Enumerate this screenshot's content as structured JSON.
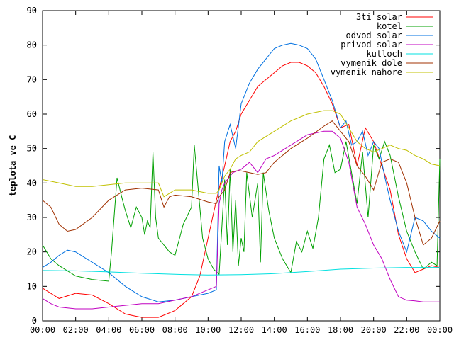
{
  "chart_data": {
    "type": "line",
    "title": "",
    "xlabel": "",
    "ylabel": "teplota ve C",
    "xlim": [
      "00:00",
      "24:00"
    ],
    "ylim": [
      0,
      90
    ],
    "yticks": [
      0,
      10,
      20,
      30,
      40,
      50,
      60,
      70,
      80,
      90
    ],
    "xticks": [
      "00:00",
      "02:00",
      "04:00",
      "06:00",
      "08:00",
      "10:00",
      "12:00",
      "14:00",
      "16:00",
      "18:00",
      "20:00",
      "22:00",
      "00:00"
    ],
    "grid": false,
    "legend": "top-right",
    "series": [
      {
        "name": "3ti solar",
        "color": "#ff0000",
        "x": [
          "00:00",
          "01:00",
          "02:00",
          "03:00",
          "04:00",
          "05:00",
          "05:30",
          "06:00",
          "07:00",
          "08:00",
          "09:00",
          "09:30",
          "10:00",
          "10:30",
          "11:00",
          "11:20",
          "11:40",
          "12:00",
          "12:30",
          "13:00",
          "13:30",
          "14:00",
          "14:30",
          "15:00",
          "15:30",
          "16:00",
          "16:30",
          "17:00",
          "17:30",
          "18:00",
          "18:30",
          "19:00",
          "19:30",
          "20:00",
          "20:30",
          "21:00",
          "21:30",
          "22:00",
          "22:30",
          "23:00",
          "23:30",
          "24:00"
        ],
        "values": [
          9.5,
          6.5,
          8,
          7.5,
          5,
          2,
          1.5,
          1,
          1,
          3,
          7,
          13,
          24,
          35,
          45,
          52,
          55,
          60,
          64,
          68,
          70,
          72,
          74,
          75,
          75,
          74,
          72,
          68,
          63,
          56,
          57,
          45,
          56,
          52,
          45,
          38,
          25,
          18,
          14,
          15,
          16,
          15.5
        ]
      },
      {
        "name": "kotel",
        "color": "#00a000",
        "x": [
          "00:00",
          "00:30",
          "01:00",
          "02:00",
          "03:00",
          "04:00",
          "04:10",
          "04:30",
          "04:50",
          "05:00",
          "05:20",
          "05:40",
          "06:00",
          "06:10",
          "06:20",
          "06:30",
          "06:40",
          "06:50",
          "07:00",
          "07:20",
          "07:40",
          "08:00",
          "08:30",
          "09:00",
          "09:10",
          "09:20",
          "09:40",
          "10:00",
          "10:20",
          "10:40",
          "11:00",
          "11:10",
          "11:20",
          "11:30",
          "11:40",
          "11:50",
          "12:00",
          "12:10",
          "12:20",
          "12:40",
          "13:00",
          "13:10",
          "13:20",
          "13:40",
          "14:00",
          "14:30",
          "15:00",
          "15:20",
          "15:40",
          "16:00",
          "16:20",
          "16:40",
          "17:00",
          "17:20",
          "17:40",
          "18:00",
          "18:20",
          "18:40",
          "19:00",
          "19:20",
          "19:40",
          "20:00",
          "20:20",
          "20:40",
          "21:00",
          "21:30",
          "22:00",
          "22:30",
          "23:00",
          "23:30",
          "23:50",
          "24:00"
        ],
        "values": [
          22,
          18,
          16,
          13,
          12,
          11.5,
          20,
          41.5,
          35,
          32,
          27,
          33,
          30,
          25,
          29,
          27,
          49,
          30,
          24,
          22,
          20,
          19,
          28,
          33,
          51,
          42,
          24,
          18,
          15,
          13.5,
          41,
          22,
          44,
          20,
          35,
          16,
          24,
          20,
          43,
          30,
          40,
          17,
          43,
          32,
          24,
          18,
          14,
          23,
          20,
          26,
          21,
          30,
          47,
          51,
          43,
          44,
          52,
          43,
          34,
          49,
          30,
          51,
          47,
          52,
          48,
          36,
          26,
          20,
          15,
          17,
          16,
          47
        ]
      },
      {
        "name": "odvod solar",
        "color": "#0070e0",
        "x": [
          "00:00",
          "00:30",
          "01:00",
          "01:30",
          "02:00",
          "03:00",
          "04:00",
          "05:00",
          "06:00",
          "07:00",
          "08:00",
          "09:00",
          "10:00",
          "10:30",
          "10:40",
          "10:50",
          "11:00",
          "11:20",
          "11:40",
          "12:00",
          "12:30",
          "13:00",
          "13:30",
          "14:00",
          "14:30",
          "15:00",
          "15:30",
          "16:00",
          "16:30",
          "17:00",
          "17:30",
          "18:00",
          "18:20",
          "18:40",
          "19:00",
          "19:20",
          "19:40",
          "20:00",
          "20:20",
          "20:40",
          "21:00",
          "21:30",
          "22:00",
          "22:30",
          "23:00",
          "23:30",
          "24:00"
        ],
        "values": [
          15.5,
          17,
          19,
          20.5,
          20,
          17,
          14,
          10,
          7,
          5.5,
          6,
          7,
          8,
          9,
          45,
          40,
          52,
          57,
          50,
          63,
          69,
          73,
          76,
          79,
          80,
          80.5,
          80,
          79,
          76,
          70,
          64,
          56,
          58,
          51,
          52,
          55,
          48,
          52,
          50,
          42,
          35,
          26,
          20,
          30,
          29,
          26,
          24
        ]
      },
      {
        "name": "privod solar",
        "color": "#c000c0",
        "x": [
          "00:00",
          "00:30",
          "01:00",
          "02:00",
          "03:00",
          "04:00",
          "05:00",
          "06:00",
          "07:00",
          "08:00",
          "09:00",
          "10:00",
          "10:30",
          "10:40",
          "10:50",
          "11:00",
          "11:30",
          "12:00",
          "12:30",
          "13:00",
          "13:30",
          "14:00",
          "15:00",
          "16:00",
          "17:00",
          "17:30",
          "18:00",
          "18:30",
          "19:00",
          "19:30",
          "20:00",
          "20:30",
          "21:00",
          "21:30",
          "22:00",
          "22:30",
          "23:00",
          "24:00"
        ],
        "values": [
          6.5,
          5,
          4,
          3.5,
          3.5,
          4,
          4.5,
          5,
          5,
          6,
          7,
          9,
          10,
          34,
          38,
          40,
          43,
          44,
          46,
          43,
          47,
          48,
          51,
          54,
          55,
          55,
          53,
          46,
          33,
          28,
          22,
          18,
          12,
          7,
          6,
          5.8,
          5.5,
          5.5
        ]
      },
      {
        "name": "kutloch",
        "color": "#00e0e0",
        "x": [
          "00:00",
          "02:00",
          "04:00",
          "06:00",
          "08:00",
          "10:00",
          "12:00",
          "14:00",
          "16:00",
          "18:00",
          "20:00",
          "22:00",
          "24:00"
        ],
        "values": [
          14.6,
          14.5,
          14.2,
          13.8,
          13.5,
          13.3,
          13.4,
          13.7,
          14.3,
          15,
          15.3,
          15.5,
          15.5
        ]
      },
      {
        "name": "vymenik dole",
        "color": "#a03000",
        "x": [
          "00:00",
          "00:30",
          "01:00",
          "01:30",
          "02:00",
          "03:00",
          "04:00",
          "05:00",
          "06:00",
          "07:00",
          "07:20",
          "07:40",
          "08:00",
          "09:00",
          "10:00",
          "10:30",
          "10:40",
          "11:00",
          "11:20",
          "11:40",
          "12:00",
          "12:30",
          "13:00",
          "13:30",
          "14:00",
          "15:00",
          "16:00",
          "17:00",
          "17:30",
          "18:00",
          "18:30",
          "19:00",
          "19:30",
          "20:00",
          "20:30",
          "21:00",
          "21:30",
          "22:00",
          "22:30",
          "23:00",
          "23:30",
          "24:00"
        ],
        "values": [
          35,
          33,
          28,
          26,
          26.5,
          30,
          35,
          38,
          38.5,
          38,
          33,
          36,
          36.5,
          36,
          34.5,
          34,
          36,
          38,
          43,
          43.5,
          43.5,
          43,
          42.5,
          43,
          46,
          50,
          53,
          56.5,
          58,
          55,
          52,
          45,
          42,
          38,
          46,
          47,
          46,
          40,
          30,
          22,
          24,
          29
        ]
      },
      {
        "name": "vymenik nahore",
        "color": "#c0c000",
        "x": [
          "00:00",
          "01:00",
          "02:00",
          "03:00",
          "04:00",
          "05:00",
          "06:00",
          "07:00",
          "07:20",
          "07:40",
          "08:00",
          "09:00",
          "10:00",
          "10:30",
          "10:40",
          "11:00",
          "11:20",
          "11:40",
          "12:00",
          "12:30",
          "13:00",
          "14:00",
          "15:00",
          "16:00",
          "17:00",
          "17:30",
          "18:00",
          "18:30",
          "19:00",
          "19:30",
          "20:00",
          "20:30",
          "21:00",
          "21:30",
          "22:00",
          "22:30",
          "23:00",
          "23:30",
          "24:00"
        ],
        "values": [
          41,
          40,
          39,
          39,
          39.5,
          40,
          40,
          40,
          36,
          37,
          38,
          38,
          37,
          37,
          38,
          42,
          44,
          47,
          48,
          49,
          52,
          55,
          58,
          60,
          61,
          61,
          60,
          56,
          52,
          50,
          49,
          50,
          51,
          50,
          49.5,
          48,
          47,
          45.5,
          45
        ]
      }
    ]
  }
}
